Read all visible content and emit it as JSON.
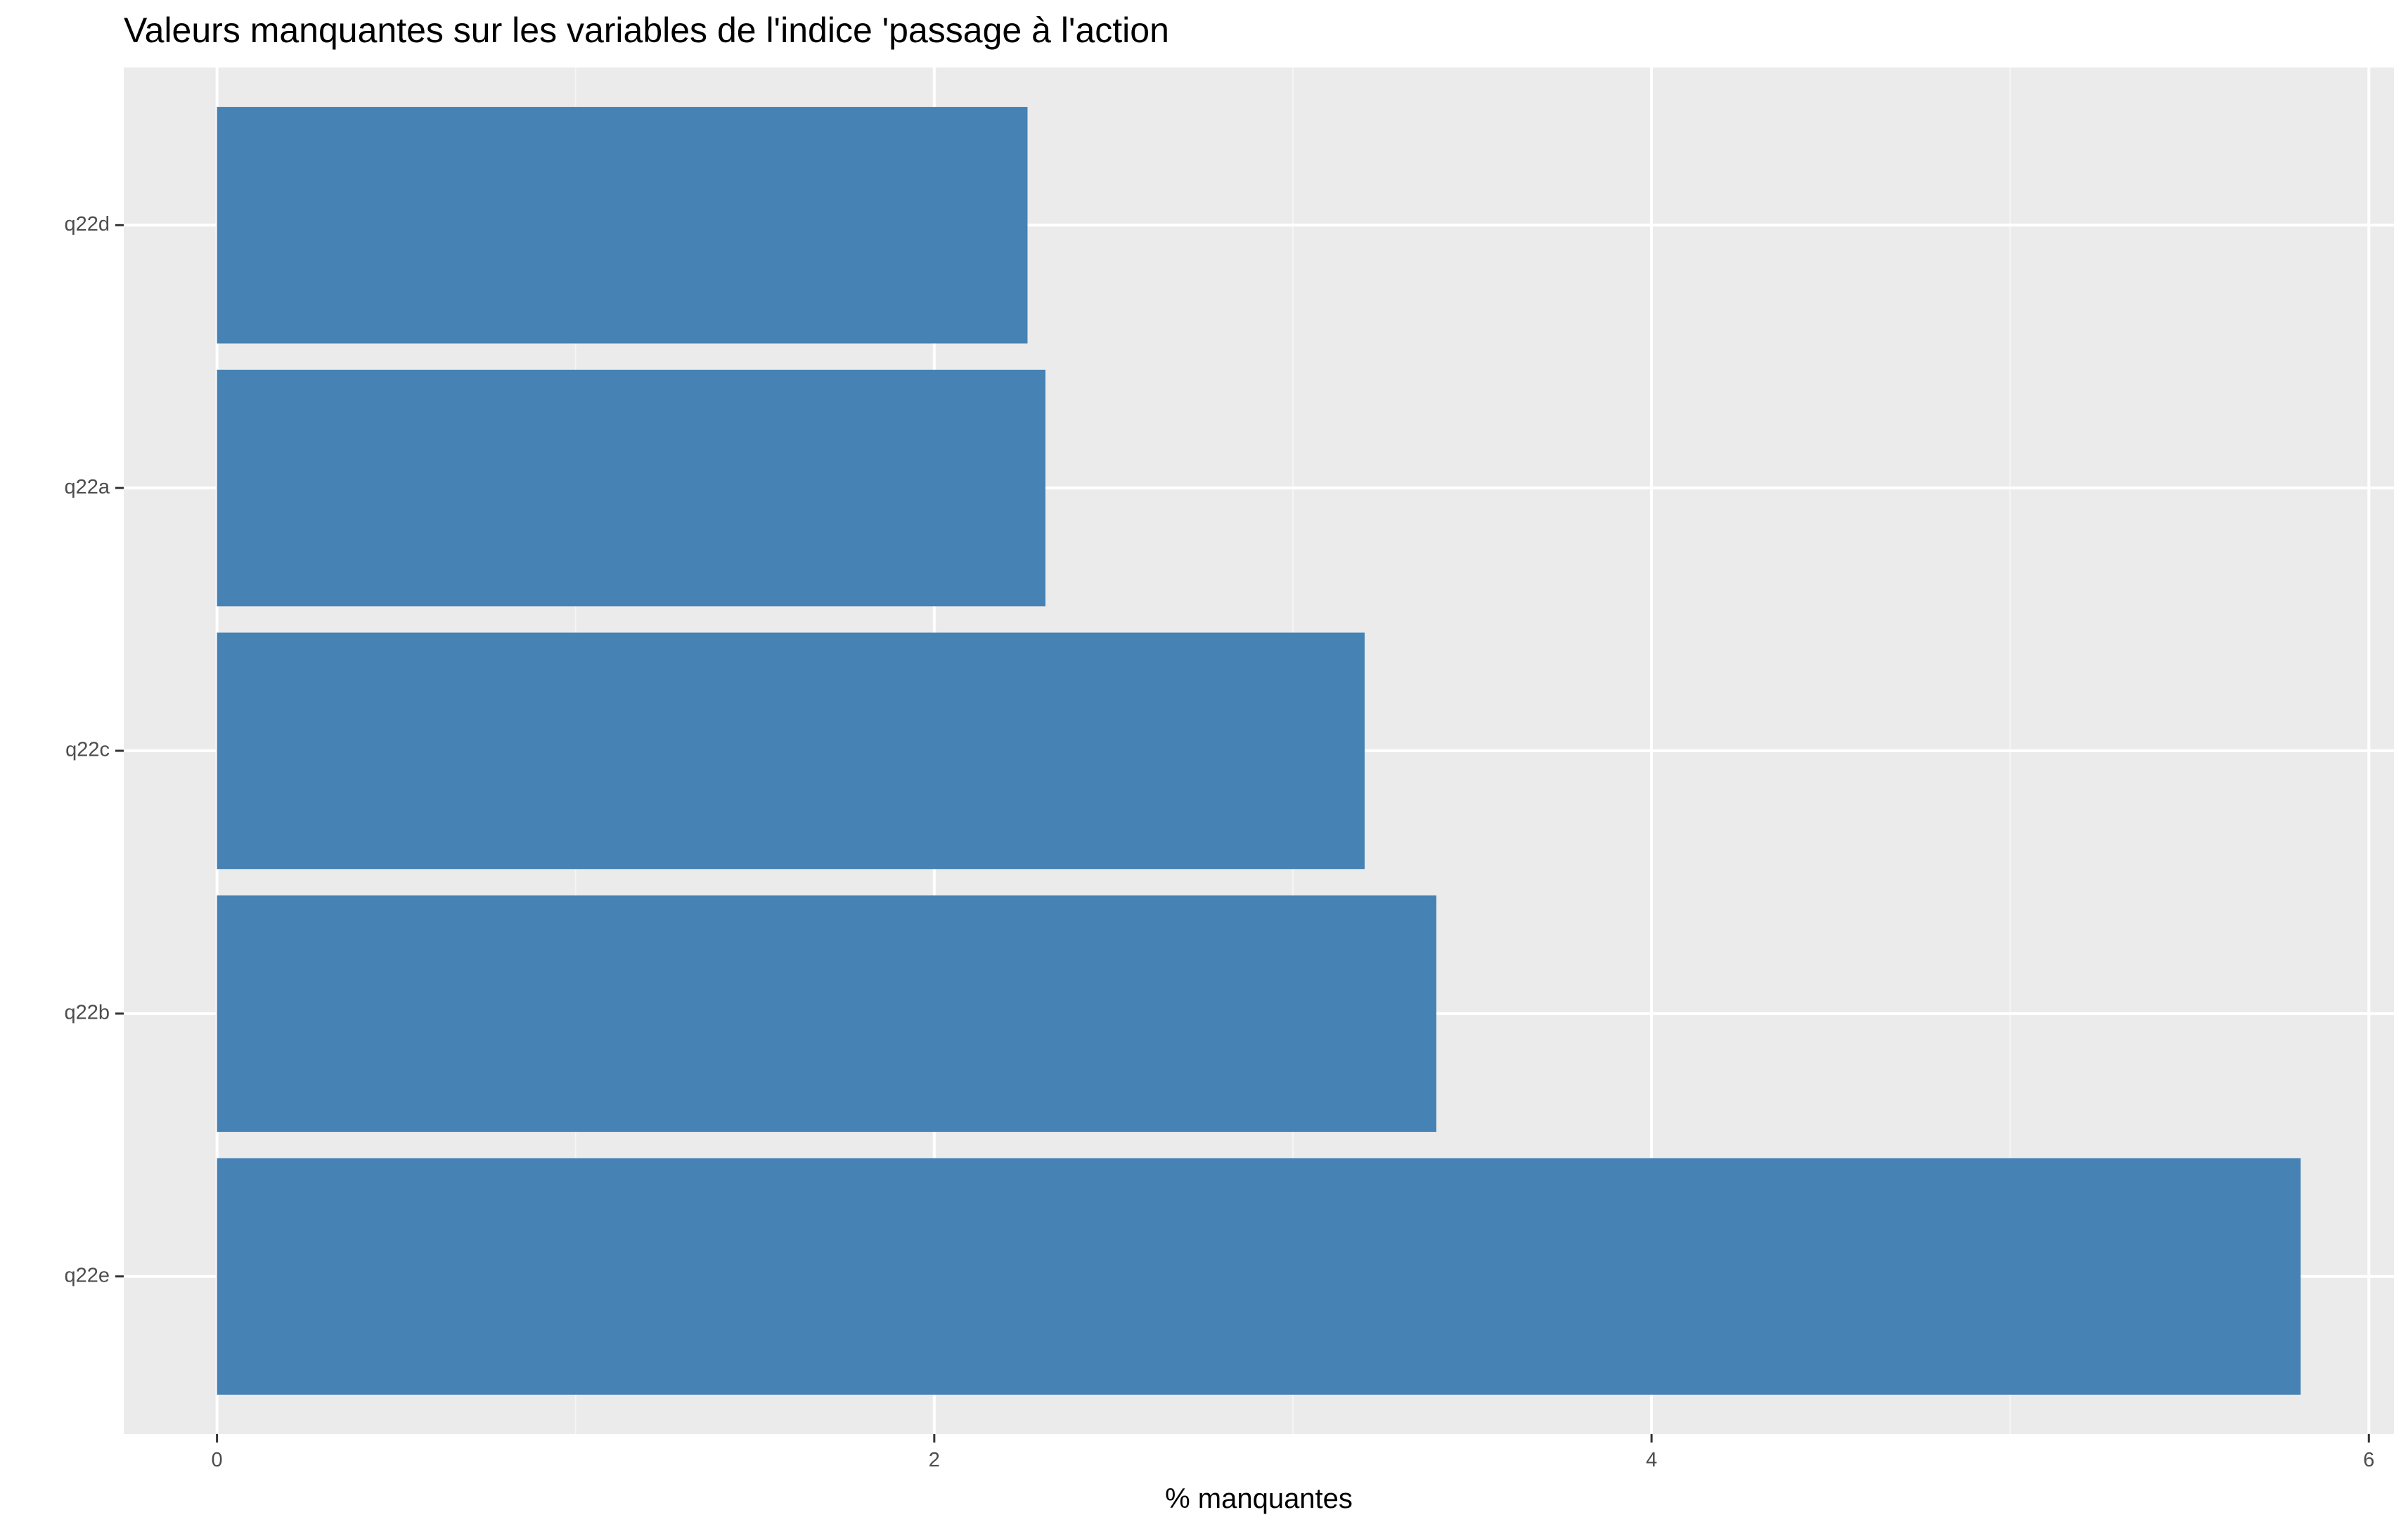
{
  "chart_data": {
    "type": "bar",
    "orientation": "horizontal",
    "title": "Valeurs manquantes sur les variables de l'indice 'passage à l'action",
    "xlabel": "% manquantes",
    "ylabel": "",
    "categories": [
      "q22d",
      "q22a",
      "q22c",
      "q22b",
      "q22e"
    ],
    "values": [
      2.26,
      2.31,
      3.2,
      3.4,
      5.81
    ],
    "xlim": [
      -0.26,
      6.07
    ],
    "x_ticks": [
      0,
      2,
      4,
      6
    ],
    "x_tick_labels": [
      "0",
      "2",
      "4",
      "6"
    ],
    "grid": true,
    "legend": "none",
    "colors": {
      "bar": "#4682B4",
      "panel_background": "#EBEBEB",
      "grid_major": "#FFFFFF",
      "grid_minor": "#F5F5F5",
      "tick_label": "#4D4D4D",
      "tick_mark": "#333333"
    }
  }
}
